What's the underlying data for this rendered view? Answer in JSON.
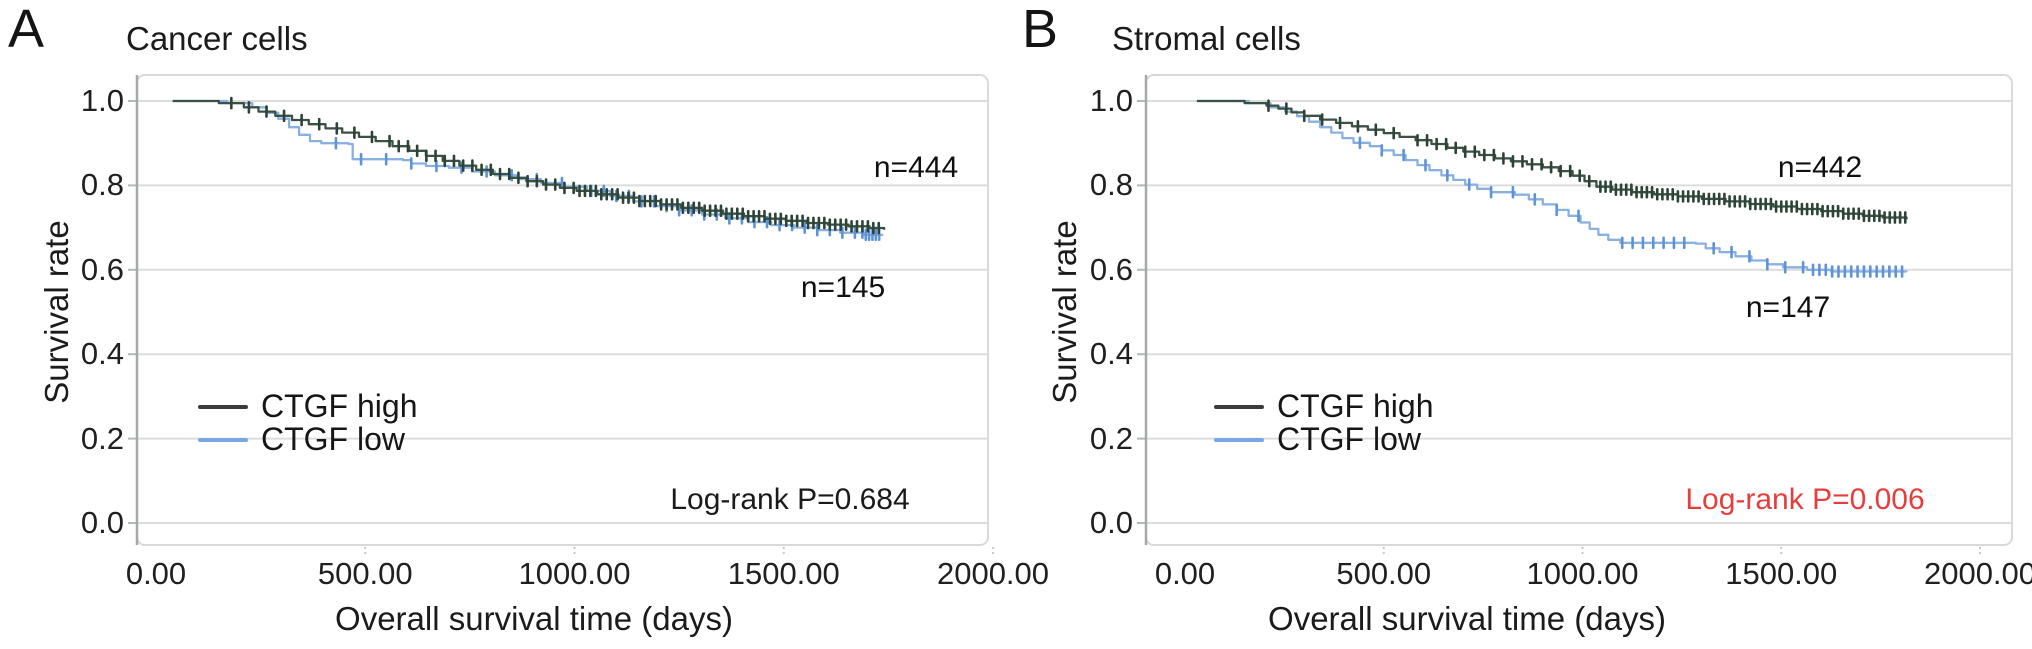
{
  "figure": {
    "background": "#ffffff"
  },
  "chart_data": [
    {
      "type": "line",
      "subtype": "kaplan-meier-step",
      "panel_label": "A",
      "title": "Cancer cells",
      "xlabel": "Overall survival time (days)",
      "ylabel": "Survival rate",
      "xlim": [
        0,
        2000
      ],
      "ylim": [
        0.0,
        1.0
      ],
      "xticks": [
        0,
        500,
        1000,
        1500,
        2000
      ],
      "xtick_labels": [
        "0.00",
        "500.00",
        "1000.00",
        "1500.00",
        "2000.00"
      ],
      "yticks": [
        1.0,
        0.8,
        0.6,
        0.4,
        0.2,
        0.0
      ],
      "ytick_labels": [
        "1.0",
        "0.8",
        "0.6",
        "0.4",
        "0.2",
        "0.0"
      ],
      "grid": true,
      "legend_position": "inside-lower-left",
      "annotations": {
        "n_high": "n=444",
        "n_low": "n=145",
        "logrank": "Log-rank P=0.684",
        "logrank_color": "#1a1a1a"
      },
      "series": [
        {
          "name": "CTGF high",
          "n": 444,
          "color": "#3c5146",
          "censor_color": "#2c4437",
          "legend_color": "#3b3b3b",
          "steps": [
            [
              40,
              1.0
            ],
            [
              150,
              0.995
            ],
            [
              210,
              0.985
            ],
            [
              245,
              0.975
            ],
            [
              285,
              0.965
            ],
            [
              325,
              0.955
            ],
            [
              365,
              0.945
            ],
            [
              405,
              0.935
            ],
            [
              445,
              0.925
            ],
            [
              485,
              0.915
            ],
            [
              525,
              0.905
            ],
            [
              565,
              0.893
            ],
            [
              605,
              0.882
            ],
            [
              645,
              0.87
            ],
            [
              685,
              0.858
            ],
            [
              725,
              0.847
            ],
            [
              765,
              0.837
            ],
            [
              805,
              0.827
            ],
            [
              845,
              0.818
            ],
            [
              885,
              0.81
            ],
            [
              925,
              0.802
            ],
            [
              965,
              0.794
            ],
            [
              1005,
              0.787
            ],
            [
              1055,
              0.779
            ],
            [
              1105,
              0.771
            ],
            [
              1155,
              0.763
            ],
            [
              1205,
              0.755
            ],
            [
              1255,
              0.747
            ],
            [
              1305,
              0.74
            ],
            [
              1355,
              0.733
            ],
            [
              1405,
              0.727
            ],
            [
              1455,
              0.721
            ],
            [
              1505,
              0.716
            ],
            [
              1555,
              0.711
            ],
            [
              1605,
              0.707
            ],
            [
              1655,
              0.703
            ],
            [
              1705,
              0.699
            ],
            [
              1740,
              0.695
            ]
          ],
          "censor_runs": [
            {
              "from": 180,
              "to": 560,
              "step": 42
            },
            {
              "from": 580,
              "to": 1000,
              "step": 22
            },
            {
              "from": 1012,
              "to": 1738,
              "step": 13
            }
          ]
        },
        {
          "name": "CTGF low",
          "n": 145,
          "color": "#8ab0e2",
          "censor_color": "#5e93d6",
          "legend_color": "#79a7e6",
          "steps": [
            [
              40,
              1.0
            ],
            [
              170,
              0.995
            ],
            [
              230,
              0.985
            ],
            [
              265,
              0.972
            ],
            [
              292,
              0.958
            ],
            [
              318,
              0.938
            ],
            [
              342,
              0.92
            ],
            [
              368,
              0.905
            ],
            [
              395,
              0.9
            ],
            [
              460,
              0.898
            ],
            [
              470,
              0.862
            ],
            [
              590,
              0.86
            ],
            [
              610,
              0.852
            ],
            [
              645,
              0.846
            ],
            [
              700,
              0.842
            ],
            [
              755,
              0.833
            ],
            [
              810,
              0.824
            ],
            [
              865,
              0.815
            ],
            [
              920,
              0.806
            ],
            [
              975,
              0.797
            ],
            [
              1030,
              0.787
            ],
            [
              1085,
              0.775
            ],
            [
              1140,
              0.762
            ],
            [
              1195,
              0.751
            ],
            [
              1250,
              0.741
            ],
            [
              1305,
              0.731
            ],
            [
              1360,
              0.722
            ],
            [
              1415,
              0.713
            ],
            [
              1470,
              0.706
            ],
            [
              1525,
              0.7
            ],
            [
              1580,
              0.694
            ],
            [
              1635,
              0.688
            ],
            [
              1690,
              0.683
            ],
            [
              1735,
              0.68
            ]
          ],
          "censor_runs": [
            {
              "from": 430,
              "to": 1020,
              "step": 60
            },
            {
              "from": 1040,
              "to": 1680,
              "step": 30
            },
            {
              "from": 1688,
              "to": 1734,
              "step": 8
            }
          ]
        }
      ]
    },
    {
      "type": "line",
      "subtype": "kaplan-meier-step",
      "panel_label": "B",
      "title": "Stromal cells",
      "xlabel": "Overall survival time (days)",
      "ylabel": "Survival rate",
      "xlim": [
        0,
        2000
      ],
      "ylim": [
        0.0,
        1.0
      ],
      "xticks": [
        0,
        500,
        1000,
        1500,
        2000
      ],
      "xtick_labels": [
        "0.00",
        "500.00",
        "1000.00",
        "1500.00",
        "2000.00"
      ],
      "yticks": [
        1.0,
        0.8,
        0.6,
        0.4,
        0.2,
        0.0
      ],
      "ytick_labels": [
        "1.0",
        "0.8",
        "0.6",
        "0.4",
        "0.2",
        "0.0"
      ],
      "grid": true,
      "legend_position": "inside-lower-left",
      "annotations": {
        "n_high": "n=442",
        "n_low": "n=147",
        "logrank": "Log-rank P=0.006",
        "logrank_color": "#e63e3c"
      },
      "series": [
        {
          "name": "CTGF high",
          "n": 442,
          "color": "#3c5146",
          "censor_color": "#2c4437",
          "legend_color": "#3b3b3b",
          "steps": [
            [
              30,
              1.0
            ],
            [
              150,
              0.995
            ],
            [
              205,
              0.989
            ],
            [
              235,
              0.982
            ],
            [
              268,
              0.973
            ],
            [
              300,
              0.965
            ],
            [
              340,
              0.956
            ],
            [
              380,
              0.948
            ],
            [
              420,
              0.94
            ],
            [
              460,
              0.932
            ],
            [
              500,
              0.924
            ],
            [
              540,
              0.915
            ],
            [
              580,
              0.907
            ],
            [
              620,
              0.898
            ],
            [
              660,
              0.889
            ],
            [
              700,
              0.88
            ],
            [
              740,
              0.872
            ],
            [
              780,
              0.864
            ],
            [
              820,
              0.857
            ],
            [
              860,
              0.85
            ],
            [
              900,
              0.843
            ],
            [
              940,
              0.834
            ],
            [
              975,
              0.823
            ],
            [
              1005,
              0.81
            ],
            [
              1035,
              0.797
            ],
            [
              1075,
              0.79
            ],
            [
              1125,
              0.784
            ],
            [
              1180,
              0.779
            ],
            [
              1240,
              0.774
            ],
            [
              1300,
              0.768
            ],
            [
              1360,
              0.762
            ],
            [
              1420,
              0.756
            ],
            [
              1480,
              0.75
            ],
            [
              1540,
              0.744
            ],
            [
              1600,
              0.739
            ],
            [
              1655,
              0.733
            ],
            [
              1705,
              0.728
            ],
            [
              1755,
              0.724
            ],
            [
              1815,
              0.72
            ]
          ],
          "censor_runs": [
            {
              "from": 210,
              "to": 560,
              "step": 45
            },
            {
              "from": 585,
              "to": 1030,
              "step": 24
            },
            {
              "from": 1045,
              "to": 1812,
              "step": 13
            }
          ]
        },
        {
          "name": "CTGF low",
          "n": 147,
          "color": "#8ab0e2",
          "censor_color": "#5e93d6",
          "legend_color": "#79a7e6",
          "steps": [
            [
              30,
              1.0
            ],
            [
              160,
              0.995
            ],
            [
              215,
              0.985
            ],
            [
              252,
              0.975
            ],
            [
              282,
              0.964
            ],
            [
              312,
              0.951
            ],
            [
              340,
              0.938
            ],
            [
              368,
              0.925
            ],
            [
              396,
              0.912
            ],
            [
              424,
              0.901
            ],
            [
              465,
              0.893
            ],
            [
              495,
              0.883
            ],
            [
              525,
              0.872
            ],
            [
              555,
              0.86
            ],
            [
              585,
              0.848
            ],
            [
              615,
              0.836
            ],
            [
              645,
              0.824
            ],
            [
              675,
              0.813
            ],
            [
              705,
              0.802
            ],
            [
              735,
              0.792
            ],
            [
              770,
              0.784
            ],
            [
              830,
              0.778
            ],
            [
              865,
              0.767
            ],
            [
              900,
              0.755
            ],
            [
              935,
              0.742
            ],
            [
              965,
              0.728
            ],
            [
              995,
              0.712
            ],
            [
              1018,
              0.697
            ],
            [
              1040,
              0.683
            ],
            [
              1065,
              0.671
            ],
            [
              1095,
              0.664
            ],
            [
              1285,
              0.662
            ],
            [
              1310,
              0.651
            ],
            [
              1345,
              0.642
            ],
            [
              1385,
              0.632
            ],
            [
              1425,
              0.622
            ],
            [
              1465,
              0.613
            ],
            [
              1505,
              0.606
            ],
            [
              1565,
              0.6
            ],
            [
              1625,
              0.596
            ],
            [
              1815,
              0.595
            ]
          ],
          "censor_runs": [
            {
              "from": 440,
              "to": 1000,
              "step": 55
            },
            {
              "from": 1100,
              "to": 1280,
              "step": 26
            },
            {
              "from": 1330,
              "to": 1560,
              "step": 45
            },
            {
              "from": 1580,
              "to": 1812,
              "step": 16
            }
          ]
        }
      ]
    }
  ]
}
